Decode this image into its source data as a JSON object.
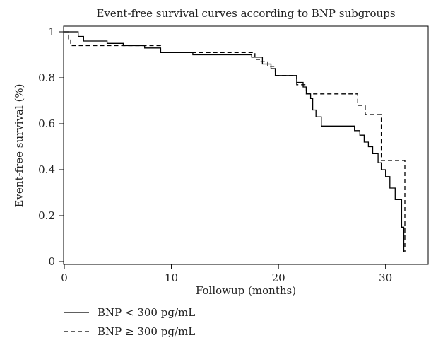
{
  "chart_data": {
    "type": "line",
    "title": "Event-free survival curves according to BNP subgroups",
    "xlabel": "Followup (months)",
    "ylabel": "Event-free survival (%)",
    "xlim": [
      0,
      32
    ],
    "ylim": [
      0,
      1
    ],
    "x_ticks": [
      0,
      10,
      20,
      30
    ],
    "y_ticks": [
      0,
      0.2,
      0.4,
      0.6,
      0.8,
      1
    ],
    "x_tick_labels": [
      "0",
      "10",
      "20",
      "30"
    ],
    "y_tick_labels": [
      "0",
      "0.2",
      "0.4",
      "0.6",
      "0.8",
      "1"
    ],
    "grid": false,
    "legend_position": "bottom-left",
    "series": [
      {
        "name": "BNP < 300 pg/mL",
        "line_style": "solid",
        "color": "#000000",
        "points": [
          [
            0,
            1.0
          ],
          [
            1.3,
            1.0
          ],
          [
            1.3,
            0.98
          ],
          [
            1.8,
            0.98
          ],
          [
            1.8,
            0.96
          ],
          [
            4.0,
            0.96
          ],
          [
            4.0,
            0.95
          ],
          [
            5.5,
            0.95
          ],
          [
            5.5,
            0.94
          ],
          [
            7.5,
            0.94
          ],
          [
            7.5,
            0.93
          ],
          [
            9.0,
            0.93
          ],
          [
            9.0,
            0.91
          ],
          [
            12.0,
            0.91
          ],
          [
            12.0,
            0.9
          ],
          [
            17.5,
            0.9
          ],
          [
            17.5,
            0.89
          ],
          [
            18.5,
            0.89
          ],
          [
            18.5,
            0.86
          ],
          [
            19.3,
            0.86
          ],
          [
            19.3,
            0.84
          ],
          [
            19.7,
            0.84
          ],
          [
            19.7,
            0.81
          ],
          [
            21.7,
            0.81
          ],
          [
            21.7,
            0.78
          ],
          [
            22.3,
            0.78
          ],
          [
            22.3,
            0.76
          ],
          [
            22.6,
            0.76
          ],
          [
            22.6,
            0.73
          ],
          [
            23.0,
            0.73
          ],
          [
            23.0,
            0.71
          ],
          [
            23.2,
            0.71
          ],
          [
            23.2,
            0.66
          ],
          [
            23.5,
            0.66
          ],
          [
            23.5,
            0.63
          ],
          [
            24.0,
            0.63
          ],
          [
            24.0,
            0.59
          ],
          [
            27.1,
            0.59
          ],
          [
            27.1,
            0.57
          ],
          [
            27.6,
            0.57
          ],
          [
            27.6,
            0.55
          ],
          [
            28.0,
            0.55
          ],
          [
            28.0,
            0.52
          ],
          [
            28.4,
            0.52
          ],
          [
            28.4,
            0.5
          ],
          [
            28.8,
            0.5
          ],
          [
            28.8,
            0.47
          ],
          [
            29.3,
            0.47
          ],
          [
            29.3,
            0.43
          ],
          [
            29.6,
            0.43
          ],
          [
            29.6,
            0.4
          ],
          [
            30.0,
            0.4
          ],
          [
            30.0,
            0.37
          ],
          [
            30.4,
            0.37
          ],
          [
            30.4,
            0.32
          ],
          [
            30.9,
            0.32
          ],
          [
            30.9,
            0.27
          ],
          [
            31.5,
            0.27
          ],
          [
            31.5,
            0.15
          ],
          [
            31.7,
            0.15
          ],
          [
            31.7,
            0.04
          ]
        ]
      },
      {
        "name": "BNP ≥ 300 pg/mL",
        "line_style": "dashed",
        "color": "#000000",
        "points": [
          [
            0,
            1.0
          ],
          [
            0.4,
            1.0
          ],
          [
            0.4,
            0.97
          ],
          [
            0.6,
            0.97
          ],
          [
            0.6,
            0.94
          ],
          [
            3.8,
            0.94
          ],
          [
            3.8,
            0.94
          ],
          [
            9.0,
            0.94
          ],
          [
            9.0,
            0.91
          ],
          [
            17.8,
            0.91
          ],
          [
            17.8,
            0.88
          ],
          [
            18.3,
            0.88
          ],
          [
            18.3,
            0.87
          ],
          [
            19.0,
            0.87
          ],
          [
            19.0,
            0.85
          ],
          [
            19.7,
            0.85
          ],
          [
            19.7,
            0.81
          ],
          [
            21.7,
            0.81
          ],
          [
            21.7,
            0.77
          ],
          [
            22.6,
            0.77
          ],
          [
            22.6,
            0.73
          ],
          [
            27.4,
            0.73
          ],
          [
            27.4,
            0.68
          ],
          [
            28.1,
            0.68
          ],
          [
            28.1,
            0.64
          ],
          [
            29.6,
            0.64
          ],
          [
            29.6,
            0.44
          ],
          [
            31.8,
            0.44
          ],
          [
            31.8,
            0.04
          ]
        ]
      }
    ]
  }
}
